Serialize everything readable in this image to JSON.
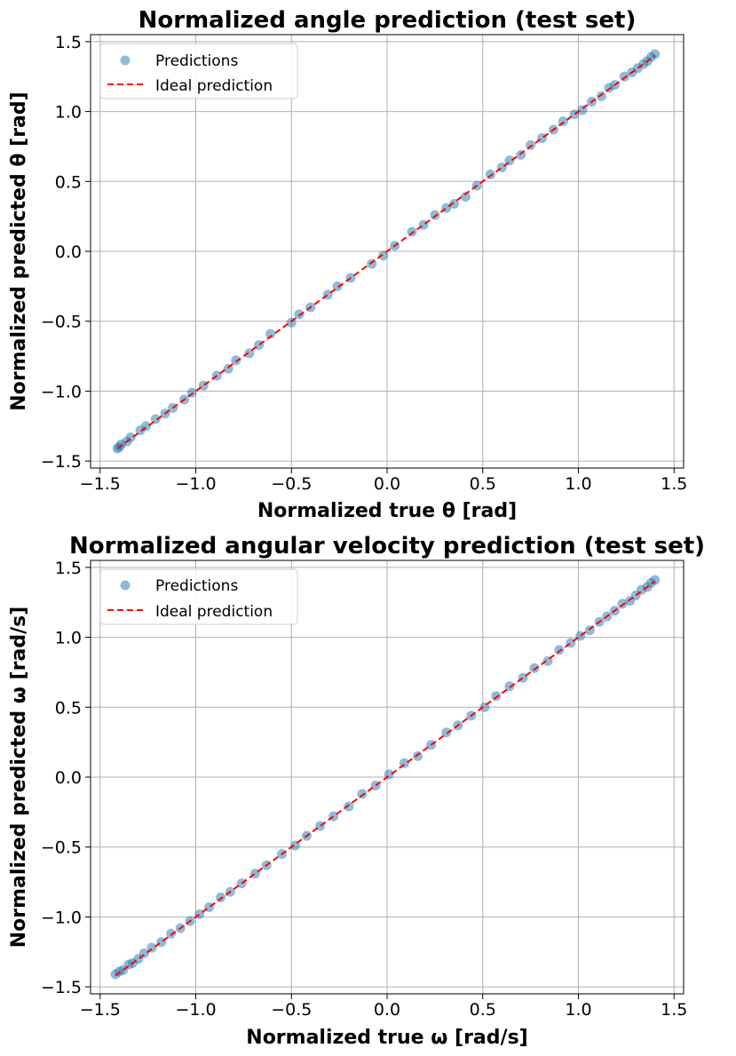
{
  "chart_data": [
    {
      "type": "scatter",
      "title": "Normalized angle prediction (test set)",
      "xlabel": "Normalized true θ [rad]",
      "ylabel": "Normalized predicted θ [rad]",
      "xlim": [
        -1.55,
        1.55
      ],
      "ylim": [
        -1.55,
        1.55
      ],
      "xticks": [
        -1.5,
        -1.0,
        -0.5,
        0.0,
        0.5,
        1.0,
        1.5
      ],
      "yticks": [
        -1.5,
        -1.0,
        -0.5,
        0.0,
        0.5,
        1.0,
        1.5
      ],
      "xtick_labels": [
        "−1.5",
        "−1.0",
        "−0.5",
        "0.0",
        "0.5",
        "1.0",
        "1.5"
      ],
      "ytick_labels": [
        "−1.5",
        "−1.0",
        "−0.5",
        "0.0",
        "0.5",
        "1.0",
        "1.5"
      ],
      "grid": true,
      "legend_position": "top-left",
      "series": [
        {
          "name": "Predictions",
          "kind": "scatter",
          "color": "#1f77b4",
          "x": [
            -1.41,
            -1.4,
            -1.39,
            -1.36,
            -1.34,
            -1.29,
            -1.26,
            -1.21,
            -1.16,
            -1.12,
            -1.06,
            -1.02,
            -0.96,
            -0.89,
            -0.83,
            -0.79,
            -0.72,
            -0.67,
            -0.61,
            -0.5,
            -0.46,
            -0.4,
            -0.31,
            -0.26,
            -0.19,
            -0.08,
            -0.02,
            0.04,
            0.13,
            0.19,
            0.25,
            0.31,
            0.35,
            0.41,
            0.47,
            0.54,
            0.6,
            0.64,
            0.7,
            0.75,
            0.81,
            0.87,
            0.92,
            0.98,
            1.02,
            1.07,
            1.12,
            1.16,
            1.19,
            1.24,
            1.28,
            1.31,
            1.34,
            1.36,
            1.38,
            1.4
          ],
          "y": [
            -1.41,
            -1.4,
            -1.38,
            -1.36,
            -1.33,
            -1.28,
            -1.25,
            -1.2,
            -1.16,
            -1.12,
            -1.06,
            -1.01,
            -0.96,
            -0.89,
            -0.84,
            -0.78,
            -0.73,
            -0.67,
            -0.59,
            -0.51,
            -0.45,
            -0.4,
            -0.31,
            -0.25,
            -0.19,
            -0.09,
            -0.03,
            0.04,
            0.14,
            0.19,
            0.26,
            0.31,
            0.34,
            0.39,
            0.47,
            0.55,
            0.6,
            0.65,
            0.69,
            0.76,
            0.81,
            0.87,
            0.93,
            0.98,
            1.01,
            1.07,
            1.11,
            1.17,
            1.19,
            1.25,
            1.28,
            1.31,
            1.34,
            1.36,
            1.39,
            1.41
          ]
        },
        {
          "name": "Ideal prediction",
          "kind": "line",
          "style": "dashed",
          "color": "#ff0000",
          "x": [
            -1.41,
            1.4
          ],
          "y": [
            -1.41,
            1.4
          ]
        }
      ]
    },
    {
      "type": "scatter",
      "title": "Normalized angular velocity prediction (test set)",
      "xlabel": "Normalized true ω [rad/s]",
      "ylabel": "Normalized predicted ω [rad/s]",
      "xlim": [
        -1.55,
        1.55
      ],
      "ylim": [
        -1.55,
        1.55
      ],
      "xticks": [
        -1.5,
        -1.0,
        -0.5,
        0.0,
        0.5,
        1.0,
        1.5
      ],
      "yticks": [
        -1.5,
        -1.0,
        -0.5,
        0.0,
        0.5,
        1.0,
        1.5
      ],
      "xtick_labels": [
        "−1.5",
        "−1.0",
        "−0.5",
        "0.0",
        "0.5",
        "1.0",
        "1.5"
      ],
      "ytick_labels": [
        "−1.5",
        "−1.0",
        "−0.5",
        "0.0",
        "0.5",
        "1.0",
        "1.5"
      ],
      "grid": true,
      "legend_position": "top-left",
      "series": [
        {
          "name": "Predictions",
          "kind": "scatter",
          "color": "#1f77b4",
          "x": [
            -1.42,
            -1.4,
            -1.38,
            -1.35,
            -1.33,
            -1.3,
            -1.27,
            -1.23,
            -1.18,
            -1.13,
            -1.08,
            -1.03,
            -0.98,
            -0.93,
            -0.87,
            -0.82,
            -0.76,
            -0.69,
            -0.63,
            -0.55,
            -0.48,
            -0.42,
            -0.35,
            -0.28,
            -0.2,
            -0.13,
            -0.06,
            0.01,
            0.09,
            0.16,
            0.23,
            0.31,
            0.37,
            0.44,
            0.51,
            0.57,
            0.64,
            0.71,
            0.77,
            0.84,
            0.9,
            0.96,
            1.01,
            1.06,
            1.11,
            1.15,
            1.19,
            1.23,
            1.27,
            1.3,
            1.33,
            1.36,
            1.38,
            1.4
          ],
          "y": [
            -1.41,
            -1.39,
            -1.38,
            -1.34,
            -1.33,
            -1.3,
            -1.26,
            -1.22,
            -1.18,
            -1.12,
            -1.08,
            -1.03,
            -0.98,
            -0.93,
            -0.86,
            -0.82,
            -0.76,
            -0.69,
            -0.63,
            -0.55,
            -0.49,
            -0.42,
            -0.35,
            -0.28,
            -0.21,
            -0.12,
            -0.06,
            0.02,
            0.1,
            0.15,
            0.23,
            0.32,
            0.37,
            0.44,
            0.5,
            0.58,
            0.65,
            0.71,
            0.78,
            0.83,
            0.91,
            0.96,
            1.01,
            1.05,
            1.11,
            1.15,
            1.19,
            1.24,
            1.26,
            1.3,
            1.34,
            1.36,
            1.39,
            1.41
          ]
        },
        {
          "name": "Ideal prediction",
          "kind": "line",
          "style": "dashed",
          "color": "#ff0000",
          "x": [
            -1.42,
            1.4
          ],
          "y": [
            -1.42,
            1.4
          ]
        }
      ]
    }
  ]
}
